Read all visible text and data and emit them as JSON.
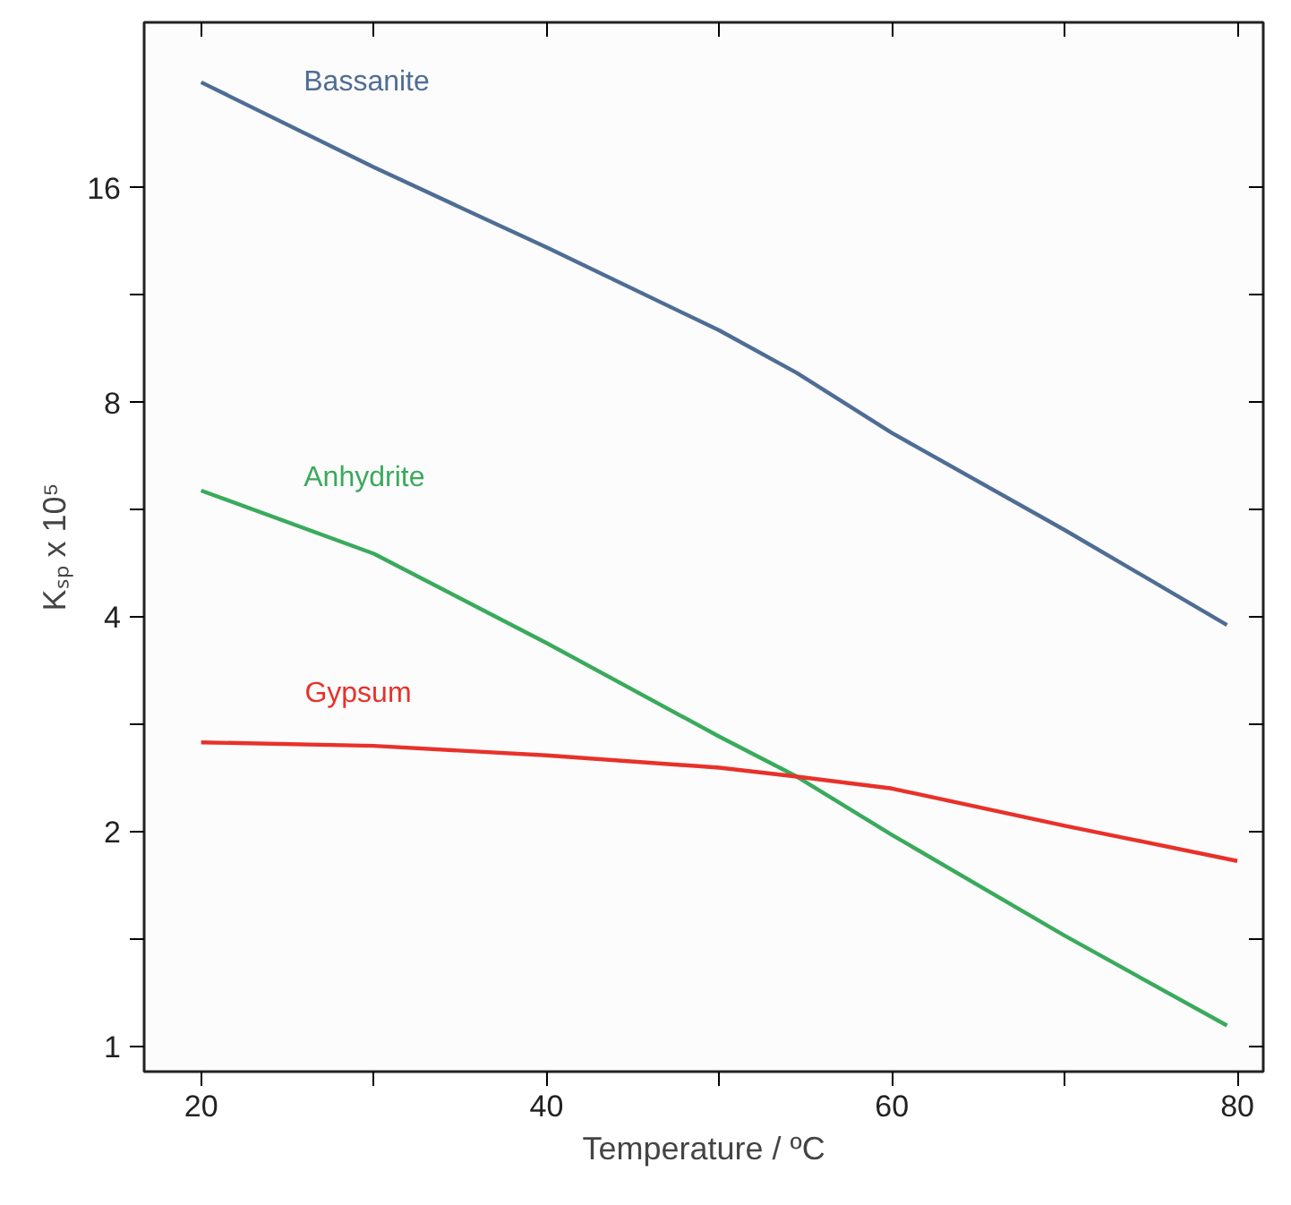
{
  "chart_data": {
    "type": "line",
    "xlabel": "Temperature / ºC",
    "ylabel": "Kₛₚ x 10⁵",
    "log": "y",
    "legend": false,
    "grid": false,
    "xlim": [
      16.7,
      81.5
    ],
    "ylim": [
      0.922,
      27.3
    ],
    "xticks": [
      20,
      {
        "value": 30,
        "label": null
      },
      40,
      {
        "value": 50,
        "label": null
      },
      60,
      {
        "value": 70,
        "label": null
      },
      80
    ],
    "yticks": [
      1,
      {
        "value": 1.414,
        "label": null
      },
      2,
      {
        "value": 2.828,
        "label": null
      },
      4,
      {
        "value": 5.657,
        "label": null
      },
      8,
      {
        "value": 11.31,
        "label": null
      },
      16
    ],
    "x": [
      20,
      30,
      40,
      50,
      54.5,
      60,
      70,
      79.4
    ],
    "series": [
      {
        "name": "Bassanite",
        "color": "#4f6d94",
        "values": [
          22.5,
          17.1,
          13.2,
          10.1,
          8.8,
          7.25,
          5.3,
          3.9
        ]
      },
      {
        "name": "Anhydrite",
        "color": "#3aaa5c",
        "values": [
          6.02,
          4.91,
          3.68,
          2.72,
          2.39,
          1.98,
          1.43,
          1.07
        ]
      },
      {
        "name": "Gypsum",
        "color": "#e8312a",
        "x": [
          20,
          30,
          40,
          50,
          54.5,
          60,
          70,
          80
        ],
        "values": [
          2.67,
          2.64,
          2.56,
          2.46,
          2.39,
          2.3,
          2.04,
          1.82
        ]
      }
    ]
  }
}
